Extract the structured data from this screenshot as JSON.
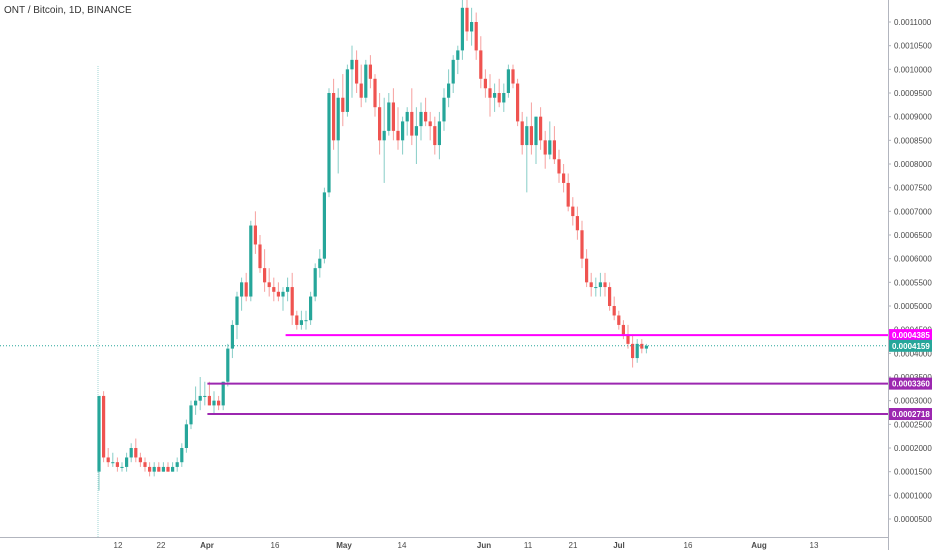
{
  "chart_data": {
    "type": "candlestick",
    "title": "ONT / Bitcoin, 1D, BINANCE",
    "colors": {
      "up": "#26a69a",
      "down": "#ef5350",
      "magenta_line": "#ff00ff",
      "purple_line": "#9c27b0",
      "last_price": "#26a69a",
      "crosshair": "#9fd6d3"
    },
    "y_axis": {
      "position": "right",
      "ticks": [
        "0.0011000",
        "0.0010500",
        "0.0010000",
        "0.0009500",
        "0.0009000",
        "0.0008500",
        "0.0008000",
        "0.0007500",
        "0.0007000",
        "0.0006500",
        "0.0006000",
        "0.0005500",
        "0.0005000",
        "0.0004500",
        "0.0004000",
        "0.0003500",
        "0.0003000",
        "0.0002500",
        "0.0002000",
        "0.0001500",
        "0.0001000",
        "0.0000500"
      ],
      "range": [
        0.0,
        0.00116
      ]
    },
    "x_axis": {
      "ticks": [
        "12",
        "22",
        "Apr",
        "16",
        "May",
        "14",
        "Jun",
        "11",
        "21",
        "Jul",
        "16",
        "Aug",
        "13"
      ],
      "bold_ticks": [
        "Apr",
        "May",
        "Jun",
        "Jul",
        "Aug"
      ]
    },
    "levels": [
      {
        "value": 0.0004385,
        "label": "0.0004385",
        "color": "#ff00ff",
        "start_index": 41
      },
      {
        "value": 0.000336,
        "label": "0.0003360",
        "color": "#9c27b0",
        "start_index": 24
      },
      {
        "value": 0.0002718,
        "label": "0.0002718",
        "color": "#9c27b0",
        "start_index": 24
      }
    ],
    "last_price": {
      "value": 0.0004159,
      "label": "0.0004159"
    },
    "candles": [
      [
        0.00015,
        0.00031,
        0.00011,
        0.00031
      ],
      [
        0.00031,
        0.00032,
        0.00017,
        0.00018
      ],
      [
        0.00018,
        0.0002,
        0.00016,
        0.00017
      ],
      [
        0.00017,
        0.00019,
        0.00016,
        0.00017
      ],
      [
        0.00017,
        0.00018,
        0.00015,
        0.00016
      ],
      [
        0.00016,
        0.00017,
        0.00015,
        0.00016
      ],
      [
        0.00016,
        0.00019,
        0.00015,
        0.00018
      ],
      [
        0.00018,
        0.00021,
        0.00017,
        0.0002
      ],
      [
        0.0002,
        0.00022,
        0.00017,
        0.00018
      ],
      [
        0.00018,
        0.00019,
        0.00016,
        0.00017
      ],
      [
        0.00017,
        0.00018,
        0.00015,
        0.00016
      ],
      [
        0.00016,
        0.00017,
        0.00014,
        0.00015
      ],
      [
        0.00015,
        0.00017,
        0.00014,
        0.00016
      ],
      [
        0.00016,
        0.00017,
        0.00015,
        0.00015
      ],
      [
        0.00015,
        0.00017,
        0.00015,
        0.00016
      ],
      [
        0.00016,
        0.00017,
        0.00015,
        0.00015
      ],
      [
        0.00015,
        0.00017,
        0.00015,
        0.00016
      ],
      [
        0.00016,
        0.00018,
        0.00015,
        0.00017
      ],
      [
        0.00017,
        0.00021,
        0.00016,
        0.0002
      ],
      [
        0.0002,
        0.00026,
        0.00019,
        0.00025
      ],
      [
        0.00025,
        0.0003,
        0.00024,
        0.00029
      ],
      [
        0.00029,
        0.00033,
        0.00027,
        0.0003
      ],
      [
        0.0003,
        0.00035,
        0.00028,
        0.00031
      ],
      [
        0.00031,
        0.00034,
        0.00029,
        0.00031
      ],
      [
        0.00031,
        0.00034,
        0.00029,
        0.00029
      ],
      [
        0.00029,
        0.00032,
        0.00027,
        0.0003
      ],
      [
        0.0003,
        0.00031,
        0.00028,
        0.00029
      ],
      [
        0.00029,
        0.00034,
        0.00028,
        0.00034
      ],
      [
        0.00034,
        0.00042,
        0.00033,
        0.00041
      ],
      [
        0.00041,
        0.00047,
        0.00039,
        0.00046
      ],
      [
        0.00046,
        0.00053,
        0.00043,
        0.00052
      ],
      [
        0.00052,
        0.00056,
        0.00049,
        0.00055
      ],
      [
        0.00055,
        0.00057,
        0.00051,
        0.00052
      ],
      [
        0.00052,
        0.00068,
        0.00051,
        0.00067
      ],
      [
        0.00067,
        0.0007,
        0.00061,
        0.00063
      ],
      [
        0.00063,
        0.00065,
        0.00057,
        0.00058
      ],
      [
        0.00058,
        0.00062,
        0.00053,
        0.00055
      ],
      [
        0.00055,
        0.00058,
        0.00052,
        0.00054
      ],
      [
        0.00054,
        0.00056,
        0.00051,
        0.00053
      ],
      [
        0.00053,
        0.00055,
        0.00051,
        0.00052
      ],
      [
        0.00052,
        0.00054,
        0.00049,
        0.00053
      ],
      [
        0.00053,
        0.00056,
        0.00051,
        0.00054
      ],
      [
        0.00054,
        0.00057,
        0.00046,
        0.00048
      ],
      [
        0.00048,
        0.00049,
        0.00045,
        0.00046
      ],
      [
        0.00046,
        0.00049,
        0.00045,
        0.00047
      ],
      [
        0.00047,
        0.00049,
        0.00045,
        0.00047
      ],
      [
        0.00047,
        0.00053,
        0.00046,
        0.00052
      ],
      [
        0.00052,
        0.00059,
        0.00051,
        0.00058
      ],
      [
        0.00058,
        0.00062,
        0.00056,
        0.0006
      ],
      [
        0.0006,
        0.00075,
        0.00059,
        0.00074
      ],
      [
        0.00074,
        0.00096,
        0.00073,
        0.00095
      ],
      [
        0.00095,
        0.00098,
        0.00083,
        0.00085
      ],
      [
        0.00085,
        0.00096,
        0.00078,
        0.00094
      ],
      [
        0.00094,
        0.00099,
        0.00088,
        0.00091
      ],
      [
        0.00091,
        0.00101,
        0.0009,
        0.001
      ],
      [
        0.001,
        0.00105,
        0.00094,
        0.00102
      ],
      [
        0.00102,
        0.00104,
        0.00095,
        0.00097
      ],
      [
        0.00097,
        0.00101,
        0.00092,
        0.00094
      ],
      [
        0.00094,
        0.00102,
        0.00093,
        0.00101
      ],
      [
        0.00101,
        0.00103,
        0.00096,
        0.00098
      ],
      [
        0.00098,
        0.00099,
        0.0009,
        0.00092
      ],
      [
        0.00092,
        0.00095,
        0.00082,
        0.00085
      ],
      [
        0.00085,
        0.00094,
        0.00076,
        0.00087
      ],
      [
        0.00087,
        0.00095,
        0.00086,
        0.00093
      ],
      [
        0.00093,
        0.00096,
        0.00085,
        0.00087
      ],
      [
        0.00087,
        0.00092,
        0.00083,
        0.00085
      ],
      [
        0.00085,
        0.0009,
        0.00082,
        0.00089
      ],
      [
        0.00089,
        0.00092,
        0.00086,
        0.00091
      ],
      [
        0.00091,
        0.00096,
        0.00084,
        0.00086
      ],
      [
        0.00086,
        0.00092,
        0.0008,
        0.00088
      ],
      [
        0.00088,
        0.00093,
        0.00085,
        0.00091
      ],
      [
        0.00091,
        0.00094,
        0.00088,
        0.00089
      ],
      [
        0.00089,
        0.00091,
        0.00085,
        0.00088
      ],
      [
        0.00088,
        0.0009,
        0.00082,
        0.00084
      ],
      [
        0.00084,
        0.00091,
        0.00081,
        0.00089
      ],
      [
        0.00089,
        0.00096,
        0.00087,
        0.00094
      ],
      [
        0.00094,
        0.001,
        0.00092,
        0.00097
      ],
      [
        0.00097,
        0.00103,
        0.00095,
        0.00102
      ],
      [
        0.00102,
        0.00105,
        0.00099,
        0.00104
      ],
      [
        0.00104,
        0.00115,
        0.00102,
        0.00113
      ],
      [
        0.00113,
        0.00116,
        0.00106,
        0.00108
      ],
      [
        0.00108,
        0.00113,
        0.00105,
        0.0011
      ],
      [
        0.0011,
        0.00112,
        0.00102,
        0.00104
      ],
      [
        0.00104,
        0.00107,
        0.00096,
        0.00098
      ],
      [
        0.00098,
        0.001,
        0.00094,
        0.00096
      ],
      [
        0.00096,
        0.00099,
        0.0009,
        0.00094
      ],
      [
        0.00094,
        0.00097,
        0.00091,
        0.00095
      ],
      [
        0.00095,
        0.00098,
        0.00092,
        0.00093
      ],
      [
        0.00093,
        0.00097,
        0.00091,
        0.00095
      ],
      [
        0.00095,
        0.00101,
        0.00094,
        0.001
      ],
      [
        0.001,
        0.00101,
        0.00096,
        0.00097
      ],
      [
        0.00097,
        0.00098,
        0.00088,
        0.00089
      ],
      [
        0.00089,
        0.00091,
        0.00082,
        0.00084
      ],
      [
        0.00084,
        0.0009,
        0.00074,
        0.00088
      ],
      [
        0.00088,
        0.00093,
        0.00082,
        0.00084
      ],
      [
        0.00084,
        0.0009,
        0.0008,
        0.0009
      ],
      [
        0.0009,
        0.00092,
        0.00083,
        0.00085
      ],
      [
        0.00085,
        0.00087,
        0.00079,
        0.00082
      ],
      [
        0.00082,
        0.00089,
        0.00081,
        0.00085
      ],
      [
        0.00085,
        0.00088,
        0.0008,
        0.00081
      ],
      [
        0.00081,
        0.00083,
        0.00076,
        0.00078
      ],
      [
        0.00078,
        0.0008,
        0.00074,
        0.00076
      ],
      [
        0.00076,
        0.00078,
        0.0007,
        0.00071
      ],
      [
        0.00071,
        0.00073,
        0.00067,
        0.00069
      ],
      [
        0.00069,
        0.00071,
        0.00064,
        0.00066
      ],
      [
        0.00066,
        0.00068,
        0.00058,
        0.0006
      ],
      [
        0.0006,
        0.00062,
        0.00054,
        0.00055
      ],
      [
        0.00055,
        0.00057,
        0.00052,
        0.00054
      ],
      [
        0.00054,
        0.00056,
        0.00052,
        0.00054
      ],
      [
        0.00054,
        0.00057,
        0.00052,
        0.00055
      ],
      [
        0.00055,
        0.00057,
        0.00052,
        0.00054
      ],
      [
        0.00054,
        0.00055,
        0.00049,
        0.0005
      ],
      [
        0.0005,
        0.00052,
        0.00047,
        0.00048
      ],
      [
        0.00048,
        0.00049,
        0.00045,
        0.00046
      ],
      [
        0.00046,
        0.00047,
        0.00043,
        0.00044
      ],
      [
        0.00044,
        0.00046,
        0.00041,
        0.00042
      ],
      [
        0.00042,
        0.00044,
        0.00037,
        0.00039
      ],
      [
        0.00039,
        0.00043,
        0.00038,
        0.00042
      ],
      [
        0.00042,
        0.00043,
        0.0004,
        0.00041
      ],
      [
        0.00041,
        0.00042,
        0.0004,
        0.000416
      ]
    ]
  }
}
